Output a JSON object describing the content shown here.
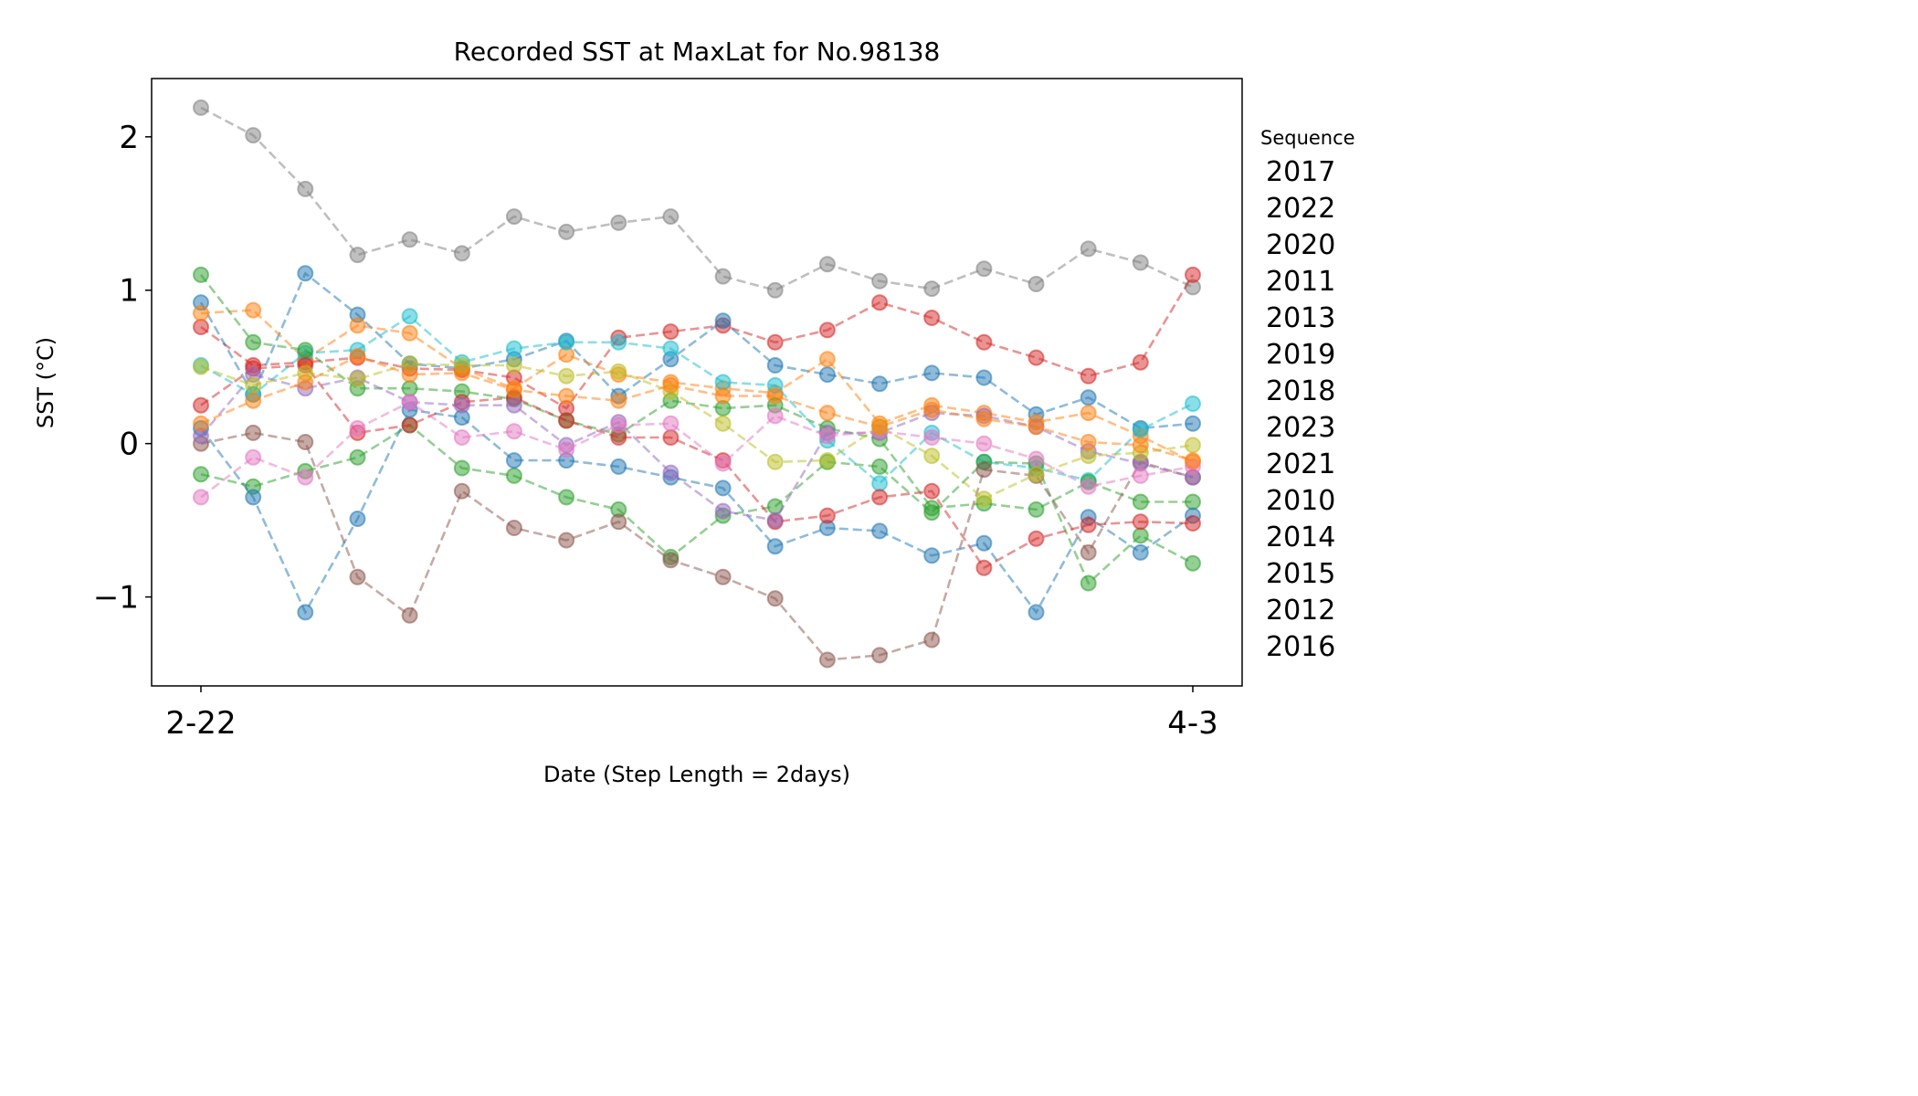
{
  "chart_data": {
    "type": "line",
    "title": "Recorded SST at MaxLat for No.98138",
    "xlabel": "Date (Step Length = 2days)",
    "ylabel": "SST (°C)",
    "x_tick_labels": [
      "2-22",
      "4-3"
    ],
    "y_ticks": [
      -1,
      0,
      1,
      2
    ],
    "y_tick_labels": [
      "−1",
      "0",
      "1",
      "2"
    ],
    "ylim": [
      -1.58,
      2.38
    ],
    "x_steps": 20,
    "grid": false,
    "legend": {
      "title": "Sequence",
      "placement": "right, outside plot",
      "entries": [
        "2017",
        "2022",
        "2020",
        "2011",
        "2013",
        "2019",
        "2018",
        "2023",
        "2021",
        "2010",
        "2014",
        "2015",
        "2012",
        "2016"
      ]
    },
    "series": [
      {
        "color": "#7f7f7f",
        "values": [
          2.19,
          2.01,
          1.66,
          1.23,
          1.33,
          1.24,
          1.48,
          1.38,
          1.44,
          1.48,
          1.09,
          1.0,
          1.17,
          1.06,
          1.01,
          1.14,
          1.04,
          1.27,
          1.18,
          1.02
        ]
      },
      {
        "color": "#d62728",
        "values": [
          0.76,
          0.51,
          0.53,
          0.56,
          0.49,
          0.48,
          0.43,
          0.23,
          0.69,
          0.73,
          0.77,
          0.66,
          0.74,
          0.92,
          0.82,
          0.66,
          0.56,
          0.44,
          0.53,
          1.1
        ]
      },
      {
        "color": "#1f77b4",
        "values": [
          0.92,
          0.32,
          1.11,
          0.84,
          0.52,
          0.49,
          0.55,
          0.67,
          0.31,
          0.55,
          0.8,
          0.51,
          0.45,
          0.39,
          0.46,
          0.43,
          0.19,
          0.3,
          0.1,
          0.13
        ]
      },
      {
        "color": "#ff7f0e",
        "values": [
          0.85,
          0.87,
          0.55,
          0.77,
          0.72,
          0.49,
          0.36,
          0.58,
          0.45,
          0.4,
          0.36,
          0.33,
          0.55,
          0.13,
          0.25,
          0.2,
          0.14,
          0.2,
          0.05,
          -0.12
        ]
      },
      {
        "color": "#17becf",
        "values": [
          0.51,
          0.32,
          0.59,
          0.61,
          0.83,
          0.53,
          0.62,
          0.66,
          0.66,
          0.62,
          0.4,
          0.38,
          0.02,
          -0.26,
          0.07,
          -0.12,
          -0.16,
          -0.24,
          0.09,
          0.26
        ]
      },
      {
        "color": "#2ca02c",
        "values": [
          1.1,
          0.66,
          0.61,
          0.36,
          0.36,
          0.34,
          0.29,
          0.15,
          0.06,
          0.28,
          0.23,
          0.25,
          0.1,
          0.03,
          -0.42,
          -0.39,
          -0.43,
          -0.25,
          -0.38,
          -0.38
        ]
      },
      {
        "color": "#2ca02c",
        "values": [
          -0.2,
          -0.28,
          -0.18,
          -0.09,
          0.12,
          -0.16,
          -0.21,
          -0.35,
          -0.43,
          -0.74,
          -0.47,
          -0.41,
          -0.12,
          -0.15,
          -0.45,
          -0.12,
          -0.13,
          -0.91,
          -0.6,
          -0.78
        ]
      },
      {
        "color": "#1f77b4",
        "values": [
          0.1,
          -0.35,
          -1.1,
          -0.49,
          0.22,
          0.17,
          -0.11,
          -0.11,
          -0.15,
          -0.22,
          -0.29,
          -0.67,
          -0.55,
          -0.57,
          -0.73,
          -0.65,
          -1.1,
          -0.48,
          -0.71,
          -0.47
        ]
      },
      {
        "color": "#8c564b",
        "values": [
          0.0,
          0.07,
          0.01,
          -0.87,
          -1.12,
          -0.31,
          -0.55,
          -0.63,
          -0.51,
          -0.76,
          -0.87,
          -1.01,
          -1.41,
          -1.38,
          -1.28,
          -0.17,
          -0.21,
          -0.71,
          -0.12,
          -0.22
        ]
      },
      {
        "color": "#d62728",
        "values": [
          0.25,
          0.49,
          0.51,
          0.07,
          0.12,
          0.27,
          0.3,
          0.15,
          0.04,
          0.04,
          -0.11,
          -0.51,
          -0.47,
          -0.35,
          -0.31,
          -0.81,
          -0.62,
          -0.53,
          -0.51,
          -0.52
        ]
      },
      {
        "color": "#9467bd",
        "values": [
          0.05,
          0.45,
          0.36,
          0.43,
          0.27,
          0.25,
          0.25,
          -0.01,
          0.14,
          -0.19,
          -0.44,
          -0.5,
          0.07,
          0.07,
          0.2,
          0.18,
          0.11,
          -0.05,
          -0.13,
          -0.22
        ]
      },
      {
        "color": "#e377c2",
        "values": [
          -0.35,
          -0.09,
          -0.22,
          0.1,
          0.27,
          0.04,
          0.08,
          -0.04,
          0.12,
          0.13,
          -0.13,
          0.18,
          0.05,
          0.08,
          0.04,
          0.0,
          -0.1,
          -0.28,
          -0.21,
          -0.15
        ]
      },
      {
        "color": "#bcbd22",
        "values": [
          0.5,
          0.38,
          0.46,
          0.42,
          0.52,
          0.51,
          0.51,
          0.44,
          0.47,
          0.34,
          0.13,
          -0.12,
          -0.11,
          0.11,
          -0.08,
          -0.36,
          -0.2,
          -0.08,
          -0.06,
          -0.01
        ]
      },
      {
        "color": "#ff7f0e",
        "values": [
          0.13,
          0.28,
          0.4,
          0.57,
          0.45,
          0.46,
          0.35,
          0.31,
          0.28,
          0.38,
          0.31,
          0.31,
          0.2,
          0.11,
          0.22,
          0.16,
          0.11,
          0.01,
          -0.01,
          -0.11
        ]
      }
    ]
  }
}
